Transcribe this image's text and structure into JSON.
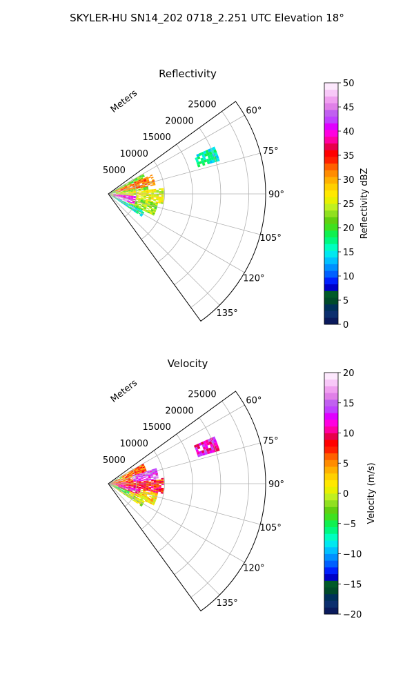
{
  "figure": {
    "title": "SKYLER-HU  SN14_202  0718_2.251 UTC Elevation 18°"
  },
  "chart_data": [
    {
      "type": "heatmap",
      "projection": "polar-sector",
      "title": "Reflectivity",
      "range_axis_label": "Meters",
      "range_ticks": [
        "5000",
        "10000",
        "15000",
        "20000",
        "25000"
      ],
      "range_values": [
        5000,
        10000,
        15000,
        20000,
        25000
      ],
      "range_max": 28000,
      "azimuth_ticks": [
        "60°",
        "75°",
        "90°",
        "105°",
        "120°",
        "135°"
      ],
      "azimuth_values": [
        60,
        75,
        90,
        105,
        120,
        135
      ],
      "azimuth_range": [
        54,
        144
      ],
      "grid": true,
      "colorbar": {
        "label": "Reflectivity dBZ",
        "ticks": [
          "0",
          "5",
          "10",
          "15",
          "20",
          "25",
          "30",
          "35",
          "40",
          "45",
          "50"
        ],
        "tick_values": [
          0,
          5,
          10,
          15,
          20,
          25,
          30,
          35,
          40,
          45,
          50
        ],
        "vmin": 0,
        "vmax": 50,
        "colors": [
          "#0a1a5c",
          "#0c2f6e",
          "#00305a",
          "#004a2a",
          "#005a28",
          "#0000c8",
          "#0020ff",
          "#0060ff",
          "#0090ff",
          "#00c0ff",
          "#00e8f0",
          "#00ffc0",
          "#00f880",
          "#10f050",
          "#40e020",
          "#60d010",
          "#90e020",
          "#c0f020",
          "#e8f000",
          "#ffe800",
          "#ffd000",
          "#ffb000",
          "#ff8c00",
          "#ff6000",
          "#ff2000",
          "#ff0000",
          "#e8004c",
          "#ff00a0",
          "#ff00e0",
          "#e000ff",
          "#c040ff",
          "#c060f0",
          "#e080e8",
          "#f0a0f0",
          "#f8c8f8",
          "#fde8fd"
        ]
      },
      "echo_regions": [
        {
          "az": [
            60,
            84
          ],
          "range": [
            0,
            7000
          ],
          "value": 22
        },
        {
          "az": [
            84,
            100
          ],
          "range": [
            0,
            10000
          ],
          "value": 26
        },
        {
          "az": [
            100,
            115
          ],
          "range": [
            0,
            9000
          ],
          "value": 23
        },
        {
          "az": [
            115,
            125
          ],
          "range": [
            0,
            7000
          ],
          "value": 16
        },
        {
          "az": [
            66,
            80
          ],
          "range": [
            1500,
            8500
          ],
          "value": 32
        },
        {
          "az": [
            94,
            112
          ],
          "range": [
            1000,
            5000
          ],
          "value": 40
        },
        {
          "az": [
            104,
            116
          ],
          "range": [
            1200,
            3800
          ],
          "value": 47
        },
        {
          "az": [
            84,
            90
          ],
          "range": [
            300,
            1400
          ],
          "value": 50
        },
        {
          "az": [
            66,
            74
          ],
          "range": [
            16500,
            20500
          ],
          "value": 16
        }
      ]
    },
    {
      "type": "heatmap",
      "projection": "polar-sector",
      "title": "Velocity",
      "range_axis_label": "Meters",
      "range_ticks": [
        "5000",
        "10000",
        "15000",
        "20000",
        "25000"
      ],
      "range_values": [
        5000,
        10000,
        15000,
        20000,
        25000
      ],
      "range_max": 28000,
      "azimuth_ticks": [
        "60°",
        "75°",
        "90°",
        "105°",
        "120°",
        "135°"
      ],
      "azimuth_values": [
        60,
        75,
        90,
        105,
        120,
        135
      ],
      "azimuth_range": [
        54,
        144
      ],
      "grid": true,
      "colorbar": {
        "label": "Velocity (m/s)",
        "ticks": [
          "−20",
          "−15",
          "−10",
          "−5",
          "0",
          "5",
          "10",
          "15",
          "20"
        ],
        "tick_values": [
          -20,
          -15,
          -10,
          -5,
          0,
          5,
          10,
          15,
          20
        ],
        "vmin": -20,
        "vmax": 20,
        "colors": [
          "#0a1a5c",
          "#0c2f6e",
          "#00305a",
          "#004a2a",
          "#005a28",
          "#0000c8",
          "#0020ff",
          "#0060ff",
          "#0090ff",
          "#00c0ff",
          "#00e8f0",
          "#00ffc0",
          "#00f880",
          "#10f050",
          "#40e020",
          "#60d010",
          "#90e020",
          "#c0f020",
          "#e8f000",
          "#ffe800",
          "#ffd000",
          "#ffb000",
          "#ff8c00",
          "#ff6000",
          "#ff2000",
          "#ff0000",
          "#e8004c",
          "#ff00a0",
          "#ff00e0",
          "#e000ff",
          "#c040ff",
          "#c060f0",
          "#e080e8",
          "#f0a0f0",
          "#f8c8f8",
          "#fde8fd"
        ]
      },
      "echo_regions": [
        {
          "az": [
            60,
            84
          ],
          "range": [
            0,
            7000
          ],
          "value": 6
        },
        {
          "az": [
            84,
            100
          ],
          "range": [
            0,
            10000
          ],
          "value": 8
        },
        {
          "az": [
            100,
            115
          ],
          "range": [
            0,
            9000
          ],
          "value": 2
        },
        {
          "az": [
            115,
            125
          ],
          "range": [
            0,
            7000
          ],
          "value": 0
        },
        {
          "az": [
            72,
            86
          ],
          "range": [
            4500,
            9000
          ],
          "value": 14
        },
        {
          "az": [
            96,
            110
          ],
          "range": [
            2000,
            6000
          ],
          "value": 10
        },
        {
          "az": [
            110,
            122
          ],
          "range": [
            500,
            4000
          ],
          "value": -4
        },
        {
          "az": [
            60,
            68
          ],
          "range": [
            0,
            2500
          ],
          "value": -3
        },
        {
          "az": [
            66,
            74
          ],
          "range": [
            16500,
            20500
          ],
          "value": 12
        }
      ]
    }
  ]
}
